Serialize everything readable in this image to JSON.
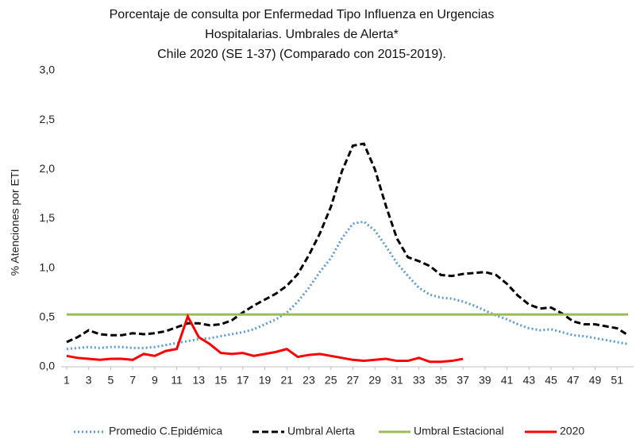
{
  "chart_data": {
    "type": "line",
    "title": [
      "Porcentaje de consulta por  Enfermedad Tipo Influenza en Urgencias",
      "Hospitalarias. Umbrales de Alerta*",
      "Chile  2020 (SE 1-37) (Comparado con 2015-2019)."
    ],
    "y_label": "% Atenciones por  ETI",
    "x": [
      1,
      2,
      3,
      4,
      5,
      6,
      7,
      8,
      9,
      10,
      11,
      12,
      13,
      14,
      15,
      16,
      17,
      18,
      19,
      20,
      21,
      22,
      23,
      24,
      25,
      26,
      27,
      28,
      29,
      30,
      31,
      32,
      33,
      34,
      35,
      36,
      37,
      38,
      39,
      40,
      41,
      42,
      43,
      44,
      45,
      46,
      47,
      48,
      49,
      50,
      51,
      52
    ],
    "xlim": [
      0.5,
      52.5
    ],
    "xticks": [
      1,
      3,
      5,
      7,
      9,
      11,
      13,
      15,
      17,
      19,
      21,
      23,
      25,
      27,
      29,
      31,
      33,
      35,
      37,
      39,
      41,
      43,
      45,
      47,
      49,
      51
    ],
    "ylim": [
      0,
      3
    ],
    "yticks": [
      {
        "value": 0,
        "label": "0,0"
      },
      {
        "value": 0.5,
        "label": "0,5"
      },
      {
        "value": 1,
        "label": "1,0"
      },
      {
        "value": 1.5,
        "label": "1,5"
      },
      {
        "value": 2,
        "label": "2,0"
      },
      {
        "value": 2.5,
        "label": "2,5"
      },
      {
        "value": 3,
        "label": "3,0"
      }
    ],
    "legend": "bottom",
    "series": [
      {
        "name": "Promedio  C.Epidémica",
        "color": "#5b9bd5",
        "linestyle": "dotted",
        "values": [
          0.18,
          0.19,
          0.2,
          0.19,
          0.2,
          0.2,
          0.19,
          0.19,
          0.2,
          0.22,
          0.24,
          0.26,
          0.28,
          0.29,
          0.31,
          0.33,
          0.35,
          0.38,
          0.43,
          0.48,
          0.55,
          0.66,
          0.8,
          0.96,
          1.1,
          1.3,
          1.45,
          1.47,
          1.38,
          1.22,
          1.05,
          0.92,
          0.8,
          0.73,
          0.7,
          0.69,
          0.66,
          0.62,
          0.57,
          0.52,
          0.48,
          0.43,
          0.39,
          0.37,
          0.38,
          0.35,
          0.32,
          0.31,
          0.29,
          0.27,
          0.25,
          0.23
        ]
      },
      {
        "name": "Umbral Alerta",
        "color": "#000000",
        "linestyle": "dashed",
        "values": [
          0.25,
          0.3,
          0.37,
          0.33,
          0.32,
          0.32,
          0.34,
          0.33,
          0.34,
          0.36,
          0.4,
          0.44,
          0.44,
          0.42,
          0.43,
          0.47,
          0.55,
          0.62,
          0.68,
          0.74,
          0.82,
          0.94,
          1.13,
          1.35,
          1.62,
          1.98,
          2.24,
          2.26,
          2.0,
          1.63,
          1.3,
          1.11,
          1.07,
          1.02,
          0.93,
          0.92,
          0.94,
          0.95,
          0.96,
          0.93,
          0.84,
          0.72,
          0.63,
          0.59,
          0.6,
          0.54,
          0.46,
          0.43,
          0.43,
          0.41,
          0.39,
          0.32
        ]
      },
      {
        "name": "Umbral Estacional",
        "color": "#9bbb59",
        "linestyle": "solid",
        "values": [
          0.53,
          0.53,
          0.53,
          0.53,
          0.53,
          0.53,
          0.53,
          0.53,
          0.53,
          0.53,
          0.53,
          0.53,
          0.53,
          0.53,
          0.53,
          0.53,
          0.53,
          0.53,
          0.53,
          0.53,
          0.53,
          0.53,
          0.53,
          0.53,
          0.53,
          0.53,
          0.53,
          0.53,
          0.53,
          0.53,
          0.53,
          0.53,
          0.53,
          0.53,
          0.53,
          0.53,
          0.53,
          0.53,
          0.53,
          0.53,
          0.53,
          0.53,
          0.53,
          0.53,
          0.53,
          0.53,
          0.53,
          0.53,
          0.53,
          0.53,
          0.53,
          0.53
        ]
      },
      {
        "name": "2020",
        "color": "#ff0000",
        "linestyle": "solid",
        "values": [
          0.11,
          0.09,
          0.08,
          0.07,
          0.08,
          0.08,
          0.07,
          0.13,
          0.11,
          0.16,
          0.18,
          0.51,
          0.3,
          0.23,
          0.14,
          0.13,
          0.14,
          0.11,
          0.13,
          0.15,
          0.18,
          0.1,
          0.12,
          0.13,
          0.11,
          0.09,
          0.07,
          0.06,
          0.07,
          0.08,
          0.06,
          0.06,
          0.09,
          0.05,
          0.05,
          0.06,
          0.08,
          null,
          null,
          null,
          null,
          null,
          null,
          null,
          null,
          null,
          null,
          null,
          null,
          null,
          null,
          null
        ]
      }
    ]
  }
}
